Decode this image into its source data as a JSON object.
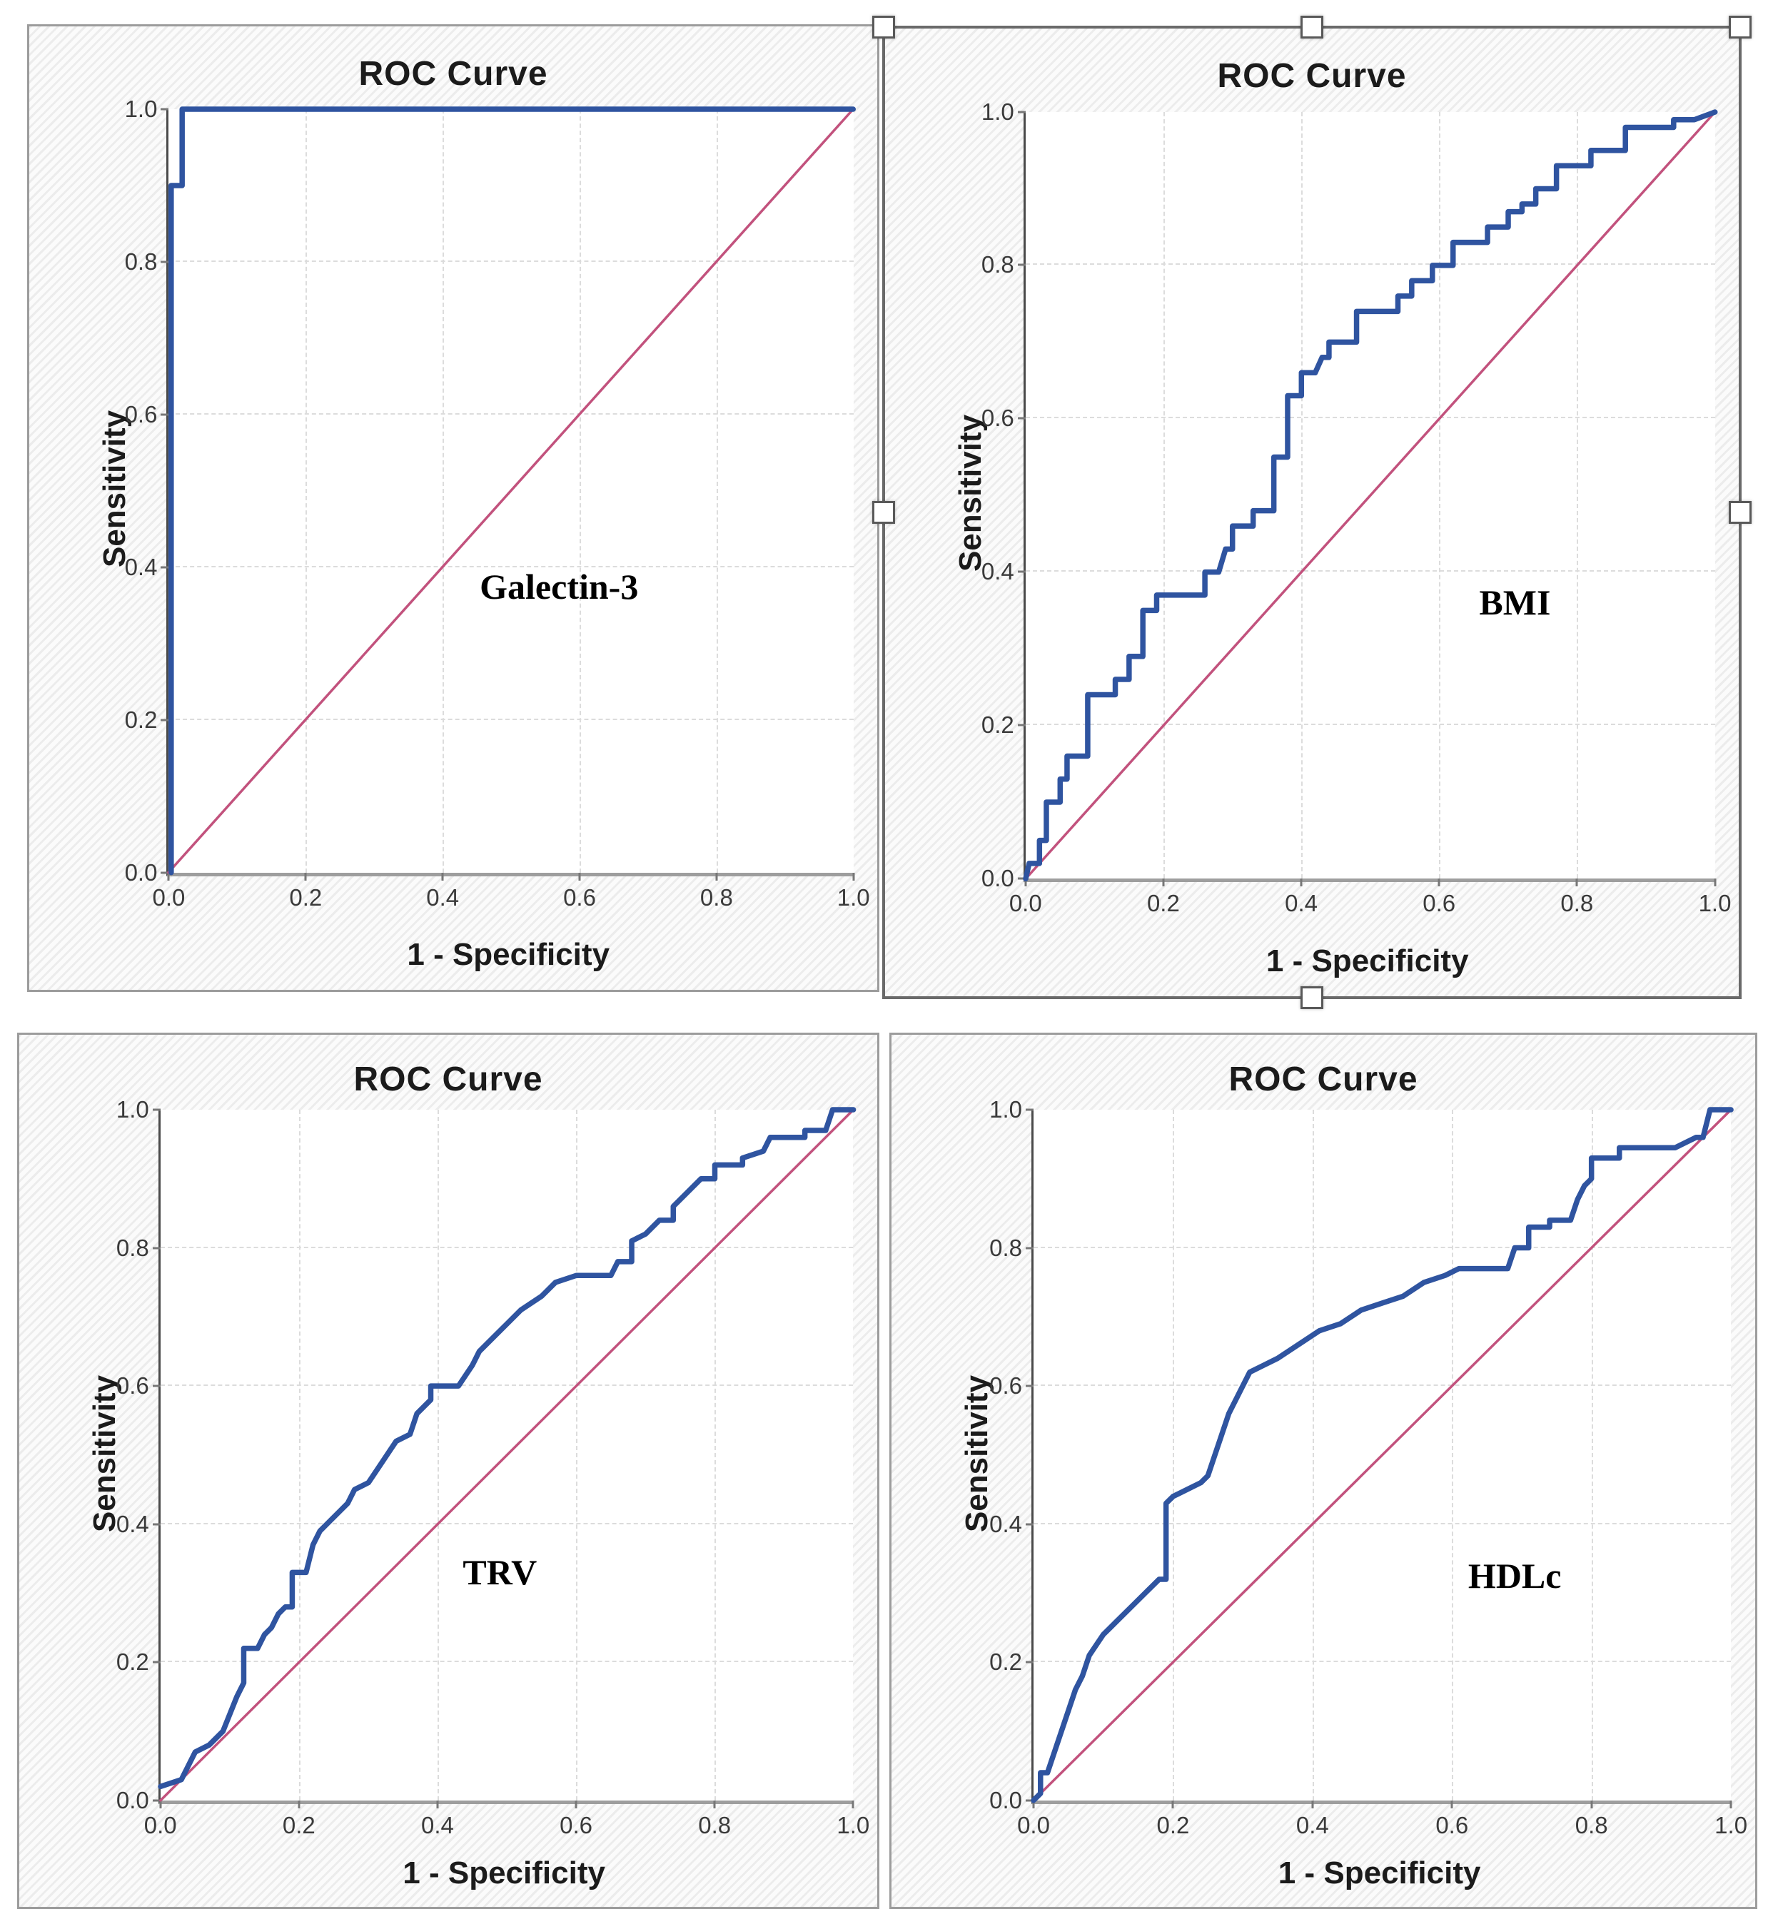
{
  "styles": {
    "roc_curve_color": "#2f54a0",
    "reference_line_color": "#c2527d",
    "grid_color": "#dcdcdc",
    "title_color": "#1b1b1b",
    "picture_border_color": "#9c9c9c",
    "selected_border_color": "#6a6a6a",
    "handle_fill": "#ffffff",
    "handle_border": "#595959"
  },
  "selection": {
    "selected_figure": "BMI",
    "handles": [
      "top-left",
      "top-center",
      "top-right",
      "middle-left",
      "middle-right",
      "bottom-center"
    ]
  },
  "chart_data": [
    {
      "type": "line",
      "title": "ROC Curve",
      "xlabel": "1 - Specificity",
      "ylabel": "Sensitivity",
      "annotation": "Galectin-3",
      "annotation_pos": [
        0.57,
        0.375
      ],
      "xlim": [
        0,
        1
      ],
      "ylim": [
        0,
        1
      ],
      "x_tick_labels": [
        "0.0",
        "0.2",
        "0.4",
        "0.6",
        "0.8",
        "1.0"
      ],
      "y_tick_labels": [
        "0.0",
        "0.2",
        "0.4",
        "0.6",
        "0.8",
        "1.0"
      ],
      "grid": true,
      "legend": "none",
      "series": [
        {
          "name": "ROC curve",
          "points": [
            [
              0.004,
              0
            ],
            [
              0.004,
              0.9
            ],
            [
              0.02,
              0.9
            ],
            [
              0.02,
              1
            ],
            [
              1,
              1
            ]
          ]
        },
        {
          "name": "Reference line",
          "points": [
            [
              0,
              0
            ],
            [
              1,
              1
            ]
          ]
        }
      ]
    },
    {
      "type": "line",
      "title": "ROC Curve",
      "xlabel": "1 - Specificity",
      "ylabel": "Sensitivity",
      "annotation": "BMI",
      "annotation_pos": [
        0.71,
        0.36
      ],
      "xlim": [
        0,
        1
      ],
      "ylim": [
        0,
        1
      ],
      "x_tick_labels": [
        "0.0",
        "0.2",
        "0.4",
        "0.6",
        "0.8",
        "1.0"
      ],
      "y_tick_labels": [
        "0.0",
        "0.2",
        "0.4",
        "0.6",
        "0.8",
        "1.0"
      ],
      "grid": true,
      "legend": "none",
      "series": [
        {
          "name": "ROC curve",
          "points": [
            [
              0,
              0
            ],
            [
              0.005,
              0.02
            ],
            [
              0.02,
              0.02
            ],
            [
              0.02,
              0.05
            ],
            [
              0.03,
              0.05
            ],
            [
              0.03,
              0.1
            ],
            [
              0.05,
              0.1
            ],
            [
              0.05,
              0.13
            ],
            [
              0.06,
              0.13
            ],
            [
              0.06,
              0.16
            ],
            [
              0.09,
              0.16
            ],
            [
              0.09,
              0.24
            ],
            [
              0.13,
              0.24
            ],
            [
              0.13,
              0.26
            ],
            [
              0.15,
              0.26
            ],
            [
              0.15,
              0.29
            ],
            [
              0.17,
              0.29
            ],
            [
              0.17,
              0.35
            ],
            [
              0.19,
              0.35
            ],
            [
              0.19,
              0.37
            ],
            [
              0.26,
              0.37
            ],
            [
              0.26,
              0.4
            ],
            [
              0.28,
              0.4
            ],
            [
              0.29,
              0.43
            ],
            [
              0.3,
              0.43
            ],
            [
              0.3,
              0.46
            ],
            [
              0.33,
              0.46
            ],
            [
              0.33,
              0.48
            ],
            [
              0.36,
              0.48
            ],
            [
              0.36,
              0.55
            ],
            [
              0.38,
              0.55
            ],
            [
              0.38,
              0.63
            ],
            [
              0.4,
              0.63
            ],
            [
              0.4,
              0.66
            ],
            [
              0.42,
              0.66
            ],
            [
              0.43,
              0.68
            ],
            [
              0.44,
              0.68
            ],
            [
              0.44,
              0.7
            ],
            [
              0.48,
              0.7
            ],
            [
              0.48,
              0.74
            ],
            [
              0.54,
              0.74
            ],
            [
              0.54,
              0.76
            ],
            [
              0.56,
              0.76
            ],
            [
              0.56,
              0.78
            ],
            [
              0.59,
              0.78
            ],
            [
              0.59,
              0.8
            ],
            [
              0.62,
              0.8
            ],
            [
              0.62,
              0.83
            ],
            [
              0.67,
              0.83
            ],
            [
              0.67,
              0.85
            ],
            [
              0.7,
              0.85
            ],
            [
              0.7,
              0.87
            ],
            [
              0.72,
              0.87
            ],
            [
              0.72,
              0.88
            ],
            [
              0.74,
              0.88
            ],
            [
              0.74,
              0.9
            ],
            [
              0.77,
              0.9
            ],
            [
              0.77,
              0.93
            ],
            [
              0.82,
              0.93
            ],
            [
              0.82,
              0.95
            ],
            [
              0.87,
              0.95
            ],
            [
              0.87,
              0.98
            ],
            [
              0.94,
              0.98
            ],
            [
              0.94,
              0.99
            ],
            [
              0.97,
              0.99
            ],
            [
              1,
              1
            ]
          ]
        },
        {
          "name": "Reference line",
          "points": [
            [
              0,
              0
            ],
            [
              1,
              1
            ]
          ]
        }
      ]
    },
    {
      "type": "line",
      "title": "ROC Curve",
      "xlabel": "1 - Specificity",
      "ylabel": "Sensitivity",
      "annotation": "TRV",
      "annotation_pos": [
        0.49,
        0.33
      ],
      "xlim": [
        0,
        1
      ],
      "ylim": [
        0,
        1
      ],
      "x_tick_labels": [
        "0.0",
        "0.2",
        "0.4",
        "0.6",
        "0.8",
        "1.0"
      ],
      "y_tick_labels": [
        "0.0",
        "0.2",
        "0.4",
        "0.6",
        "0.8",
        "1.0"
      ],
      "grid": true,
      "legend": "none",
      "series": [
        {
          "name": "ROC curve",
          "points": [
            [
              0,
              0.02
            ],
            [
              0.03,
              0.03
            ],
            [
              0.05,
              0.07
            ],
            [
              0.07,
              0.08
            ],
            [
              0.09,
              0.1
            ],
            [
              0.11,
              0.15
            ],
            [
              0.12,
              0.17
            ],
            [
              0.12,
              0.22
            ],
            [
              0.14,
              0.22
            ],
            [
              0.15,
              0.24
            ],
            [
              0.16,
              0.25
            ],
            [
              0.17,
              0.27
            ],
            [
              0.18,
              0.28
            ],
            [
              0.19,
              0.28
            ],
            [
              0.19,
              0.33
            ],
            [
              0.21,
              0.33
            ],
            [
              0.22,
              0.37
            ],
            [
              0.23,
              0.39
            ],
            [
              0.24,
              0.4
            ],
            [
              0.26,
              0.42
            ],
            [
              0.27,
              0.43
            ],
            [
              0.28,
              0.45
            ],
            [
              0.3,
              0.46
            ],
            [
              0.32,
              0.49
            ],
            [
              0.34,
              0.52
            ],
            [
              0.36,
              0.53
            ],
            [
              0.37,
              0.56
            ],
            [
              0.39,
              0.58
            ],
            [
              0.39,
              0.6
            ],
            [
              0.43,
              0.6
            ],
            [
              0.45,
              0.63
            ],
            [
              0.46,
              0.65
            ],
            [
              0.48,
              0.67
            ],
            [
              0.5,
              0.69
            ],
            [
              0.52,
              0.71
            ],
            [
              0.55,
              0.73
            ],
            [
              0.57,
              0.75
            ],
            [
              0.6,
              0.76
            ],
            [
              0.65,
              0.76
            ],
            [
              0.66,
              0.78
            ],
            [
              0.68,
              0.78
            ],
            [
              0.68,
              0.81
            ],
            [
              0.7,
              0.82
            ],
            [
              0.72,
              0.84
            ],
            [
              0.74,
              0.84
            ],
            [
              0.74,
              0.86
            ],
            [
              0.76,
              0.88
            ],
            [
              0.78,
              0.9
            ],
            [
              0.8,
              0.9
            ],
            [
              0.8,
              0.92
            ],
            [
              0.84,
              0.92
            ],
            [
              0.84,
              0.93
            ],
            [
              0.87,
              0.94
            ],
            [
              0.88,
              0.96
            ],
            [
              0.93,
              0.96
            ],
            [
              0.93,
              0.97
            ],
            [
              0.96,
              0.97
            ],
            [
              0.97,
              1
            ],
            [
              1,
              1
            ]
          ]
        },
        {
          "name": "Reference line",
          "points": [
            [
              0,
              0
            ],
            [
              1,
              1
            ]
          ]
        }
      ]
    },
    {
      "type": "line",
      "title": "ROC Curve",
      "xlabel": "1 - Specificity",
      "ylabel": "Sensitivity",
      "annotation": "HDLc",
      "annotation_pos": [
        0.69,
        0.325
      ],
      "xlim": [
        0,
        1
      ],
      "ylim": [
        0,
        1
      ],
      "x_tick_labels": [
        "0.0",
        "0.2",
        "0.4",
        "0.6",
        "0.8",
        "1.0"
      ],
      "y_tick_labels": [
        "0.0",
        "0.2",
        "0.4",
        "0.6",
        "0.8",
        "1.0"
      ],
      "grid": true,
      "legend": "none",
      "series": [
        {
          "name": "ROC curve",
          "points": [
            [
              0,
              0
            ],
            [
              0.01,
              0.01
            ],
            [
              0.01,
              0.04
            ],
            [
              0.02,
              0.04
            ],
            [
              0.03,
              0.07
            ],
            [
              0.04,
              0.1
            ],
            [
              0.05,
              0.13
            ],
            [
              0.06,
              0.16
            ],
            [
              0.07,
              0.18
            ],
            [
              0.08,
              0.21
            ],
            [
              0.1,
              0.24
            ],
            [
              0.11,
              0.25
            ],
            [
              0.12,
              0.26
            ],
            [
              0.14,
              0.28
            ],
            [
              0.16,
              0.3
            ],
            [
              0.18,
              0.32
            ],
            [
              0.19,
              0.32
            ],
            [
              0.19,
              0.43
            ],
            [
              0.2,
              0.44
            ],
            [
              0.22,
              0.45
            ],
            [
              0.24,
              0.46
            ],
            [
              0.25,
              0.47
            ],
            [
              0.26,
              0.5
            ],
            [
              0.27,
              0.53
            ],
            [
              0.28,
              0.56
            ],
            [
              0.3,
              0.6
            ],
            [
              0.31,
              0.62
            ],
            [
              0.33,
              0.63
            ],
            [
              0.35,
              0.64
            ],
            [
              0.38,
              0.66
            ],
            [
              0.41,
              0.68
            ],
            [
              0.44,
              0.69
            ],
            [
              0.47,
              0.71
            ],
            [
              0.5,
              0.72
            ],
            [
              0.53,
              0.73
            ],
            [
              0.56,
              0.75
            ],
            [
              0.59,
              0.76
            ],
            [
              0.61,
              0.77
            ],
            [
              0.68,
              0.77
            ],
            [
              0.69,
              0.8
            ],
            [
              0.71,
              0.8
            ],
            [
              0.71,
              0.83
            ],
            [
              0.74,
              0.83
            ],
            [
              0.74,
              0.84
            ],
            [
              0.77,
              0.84
            ],
            [
              0.78,
              0.87
            ],
            [
              0.79,
              0.89
            ],
            [
              0.8,
              0.9
            ],
            [
              0.8,
              0.93
            ],
            [
              0.84,
              0.93
            ],
            [
              0.84,
              0.945
            ],
            [
              0.92,
              0.945
            ],
            [
              0.93,
              0.95
            ],
            [
              0.95,
              0.96
            ],
            [
              0.96,
              0.96
            ],
            [
              0.97,
              1
            ],
            [
              1,
              1
            ]
          ]
        },
        {
          "name": "Reference line",
          "points": [
            [
              0,
              0
            ],
            [
              1,
              1
            ]
          ]
        }
      ]
    }
  ]
}
